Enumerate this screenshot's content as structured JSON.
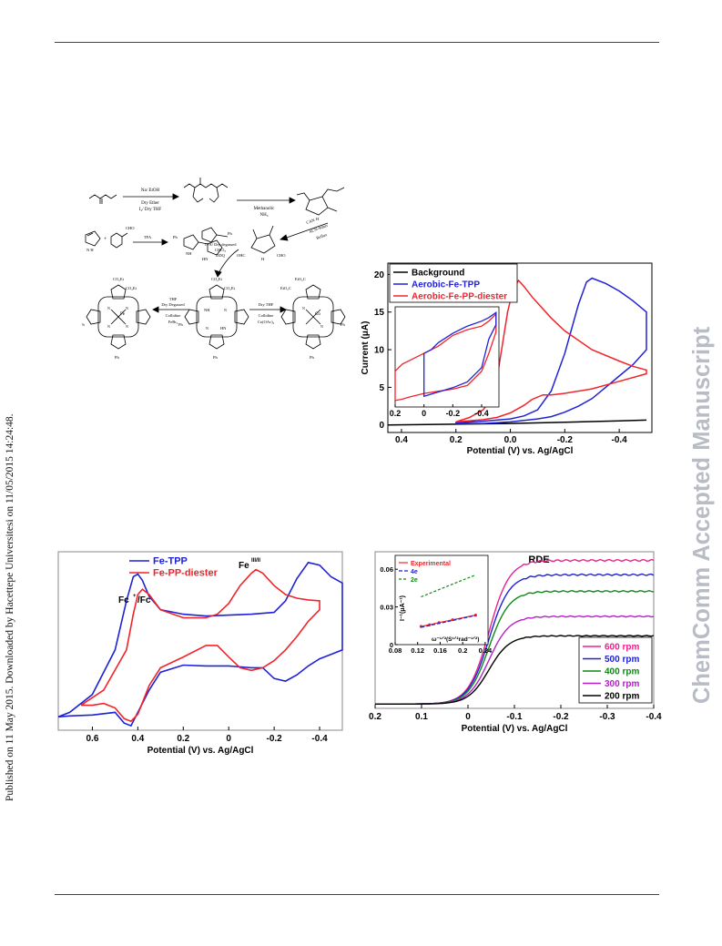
{
  "sidebar_left": "Published on 11 May 2015. Downloaded by Hacettepe Universitesi on 11/05/2015 14:24:48.",
  "watermark": "ChemComm Accepted Manuscript",
  "scheme": {
    "step1_top": "Na/ EtOH",
    "step1_bottom1": "Dry Ether",
    "step1_bottom2": "I₂/ Dry THF",
    "step2_top": "Methanolic",
    "step2_bottom": "NH₃",
    "step3_a": "CAN",
    "step3_b": "ACN-Water",
    "step3_c": "Reflux",
    "aldehyde_label": "CHO",
    "pyrrole_nh": "N H",
    "tfa_label": "TFA",
    "ph": "Ph",
    "nh": "NH",
    "hn": "HN",
    "ohc": "OHC",
    "cho": "CHO",
    "h": "H",
    "cond_center1": "TFA/ Dry degassed",
    "cond_center2": "CHCl₃",
    "cond_center3": "DDQ",
    "cond_left1": "Dry Degassed",
    "cond_left2": "THF",
    "cond_left3": "Collidine",
    "cond_left4": "FeBr₂",
    "cond_right1": "Dry THF",
    "cond_right2": "Collidine",
    "cond_right3": "Co(OAc)₂",
    "co2et": "CO₂Et",
    "eto2c": "EtO₂C",
    "fe": "Fe",
    "co": "Co",
    "n": "N"
  },
  "charts": [
    {
      "id": "cv-aerobic",
      "type": "line",
      "xlabel": "Potential (V) vs. Ag/AgCl",
      "ylabel": "Current (μA)",
      "xlim": [
        0.45,
        -0.52
      ],
      "ylim": [
        -1,
        21.5
      ],
      "xticks": [
        {
          "v": 0.4,
          "t": "0.4"
        },
        {
          "v": 0.2,
          "t": "0.2"
        },
        {
          "v": 0.0,
          "t": "0.0"
        },
        {
          "v": -0.2,
          "t": "-0.2"
        },
        {
          "v": -0.4,
          "t": "-0.4"
        }
      ],
      "yticks": [
        {
          "v": 0,
          "t": "0"
        },
        {
          "v": 5,
          "t": "5"
        },
        {
          "v": 10,
          "t": "10"
        },
        {
          "v": 15,
          "t": "15"
        },
        {
          "v": 20,
          "t": "20"
        }
      ],
      "legend_position": "top-left",
      "series": [
        {
          "name": "Background",
          "color": "#000000",
          "x": [
            0.45,
            0.2,
            0.0,
            -0.2,
            -0.4,
            -0.5
          ],
          "y": [
            0.0,
            0.1,
            0.2,
            0.35,
            0.55,
            0.65
          ]
        },
        {
          "name": "Aerobic-Fe-TPP",
          "color": "#1f22d6",
          "x": [
            0.2,
            0.1,
            0.0,
            -0.05,
            -0.1,
            -0.15,
            -0.2,
            -0.25,
            -0.28,
            -0.3,
            -0.35,
            -0.4,
            -0.45,
            -0.5,
            -0.5,
            -0.45,
            -0.4,
            -0.35,
            -0.3,
            -0.25,
            -0.2,
            -0.15,
            -0.1,
            -0.05,
            0.0,
            0.05,
            0.1,
            0.2
          ],
          "y": [
            0.3,
            0.5,
            0.8,
            1.2,
            2.0,
            4.5,
            9.5,
            16.0,
            19.0,
            19.5,
            18.8,
            17.8,
            16.5,
            15.0,
            10.0,
            8.0,
            6.5,
            5.0,
            3.5,
            2.5,
            1.7,
            1.1,
            0.8,
            0.6,
            0.4,
            0.3,
            0.2,
            0.2
          ]
        },
        {
          "name": "Aerobic-Fe-PP-diester",
          "color": "#f2242a",
          "x": [
            0.2,
            0.15,
            0.1,
            0.07,
            0.05,
            0.03,
            0.01,
            -0.01,
            -0.03,
            -0.05,
            -0.08,
            -0.1,
            -0.15,
            -0.2,
            -0.3,
            -0.4,
            -0.45,
            -0.5,
            -0.5,
            -0.4,
            -0.3,
            -0.2,
            -0.15,
            -0.12,
            -0.08,
            -0.05,
            0.0,
            0.05,
            0.1,
            0.2
          ],
          "y": [
            0.4,
            1.0,
            2.0,
            3.5,
            6.0,
            10.5,
            15.0,
            18.0,
            19.2,
            18.4,
            17.0,
            16.2,
            14.2,
            12.5,
            10.0,
            8.5,
            7.8,
            7.3,
            6.8,
            5.8,
            4.8,
            4.2,
            4.0,
            4.0,
            3.4,
            2.6,
            1.6,
            1.0,
            0.7,
            0.4
          ]
        }
      ],
      "inset": {
        "xlim": [
          0.2,
          -0.52
        ],
        "ylim": [
          2.5,
          16.5
        ],
        "xticks": [
          {
            "v": 0.2,
            "t": "0.2"
          },
          {
            "v": 0.0,
            "t": "0"
          },
          {
            "v": -0.2,
            "t": "-0.2"
          },
          {
            "v": -0.4,
            "t": "-0.4"
          }
        ],
        "series": [
          {
            "color": "#f2242a",
            "x": [
              0.2,
              0.2,
              0.15,
              0.1,
              0.0,
              -0.1,
              -0.2,
              -0.3,
              -0.4,
              -0.45,
              -0.5,
              -0.5,
              -0.45,
              -0.4,
              -0.3,
              -0.2,
              -0.1,
              0.0,
              0.1,
              0.15,
              0.2
            ],
            "y": [
              3.4,
              7.5,
              8.5,
              9.0,
              10.0,
              11.0,
              12.5,
              13.3,
              13.8,
              14.5,
              15.5,
              13.0,
              10.0,
              7.5,
              5.5,
              5.0,
              4.7,
              4.4,
              3.9,
              3.6,
              3.4
            ]
          },
          {
            "color": "#1f22d6",
            "x": [
              0.0,
              0.0,
              -0.05,
              -0.1,
              -0.2,
              -0.3,
              -0.4,
              -0.45,
              -0.5,
              -0.5,
              -0.45,
              -0.4,
              -0.3,
              -0.2,
              -0.1,
              0.0
            ],
            "y": [
              4.0,
              10.0,
              10.5,
              11.5,
              12.8,
              13.8,
              14.5,
              15.0,
              15.7,
              14.0,
              12.0,
              8.0,
              6.0,
              5.2,
              4.6,
              4.0
            ]
          }
        ]
      }
    },
    {
      "id": "cv-comparison",
      "type": "line",
      "xlabel": "Potential (V) vs. Ag/AgCl",
      "xlim": [
        0.75,
        -0.5
      ],
      "ylim": [
        -1.0,
        1.0
      ],
      "xticks": [
        {
          "v": 0.6,
          "t": "0.6"
        },
        {
          "v": 0.4,
          "t": "0.4"
        },
        {
          "v": 0.2,
          "t": "0.2"
        },
        {
          "v": 0.0,
          "t": "0"
        },
        {
          "v": -0.2,
          "t": "-0.2"
        },
        {
          "v": -0.4,
          "t": "-0.4"
        }
      ],
      "legend_position": "top-left",
      "annotations": [
        {
          "text": "Fc",
          "sup": "+",
          "suffix": "/Fc"
        },
        {
          "text": "Fe",
          "sup": "III/II"
        }
      ],
      "series": [
        {
          "name": "Fe-TPP",
          "color": "#1f22d6",
          "x": [
            0.75,
            0.7,
            0.6,
            0.5,
            0.45,
            0.42,
            0.4,
            0.38,
            0.35,
            0.3,
            0.2,
            0.1,
            0.0,
            -0.1,
            -0.2,
            -0.25,
            -0.3,
            -0.35,
            -0.4,
            -0.45,
            -0.5,
            -0.5,
            -0.45,
            -0.4,
            -0.35,
            -0.3,
            -0.25,
            -0.2,
            -0.15,
            -0.1,
            0.0,
            0.1,
            0.2,
            0.3,
            0.35,
            0.4,
            0.43,
            0.46,
            0.5,
            0.6,
            0.7,
            0.75
          ],
          "y": [
            -0.85,
            -0.8,
            -0.6,
            -0.1,
            0.45,
            0.72,
            0.75,
            0.68,
            0.5,
            0.35,
            0.3,
            0.28,
            0.29,
            0.3,
            0.32,
            0.45,
            0.7,
            0.88,
            0.85,
            0.72,
            0.65,
            -0.1,
            -0.15,
            -0.2,
            -0.28,
            -0.38,
            -0.45,
            -0.42,
            -0.3,
            -0.3,
            -0.28,
            -0.28,
            -0.27,
            -0.35,
            -0.55,
            -0.8,
            -0.95,
            -0.92,
            -0.8,
            -0.83,
            -0.84,
            -0.85
          ]
        },
        {
          "name": "Fe-PP-diester",
          "color": "#f2242a",
          "x": [
            0.65,
            0.55,
            0.45,
            0.42,
            0.4,
            0.38,
            0.35,
            0.3,
            0.2,
            0.1,
            0.05,
            0.0,
            -0.05,
            -0.1,
            -0.12,
            -0.15,
            -0.2,
            -0.25,
            -0.3,
            -0.35,
            -0.4,
            -0.4,
            -0.35,
            -0.3,
            -0.25,
            -0.2,
            -0.15,
            -0.1,
            -0.05,
            0.0,
            0.05,
            0.1,
            0.2,
            0.3,
            0.35,
            0.4,
            0.43,
            0.46,
            0.5,
            0.55,
            0.6,
            0.65
          ],
          "y": [
            -0.72,
            -0.55,
            -0.1,
            0.3,
            0.52,
            0.58,
            0.52,
            0.35,
            0.26,
            0.26,
            0.3,
            0.42,
            0.62,
            0.76,
            0.8,
            0.76,
            0.62,
            0.52,
            0.48,
            0.46,
            0.45,
            0.35,
            0.22,
            0.05,
            -0.1,
            -0.22,
            -0.3,
            -0.33,
            -0.3,
            -0.18,
            -0.05,
            -0.05,
            -0.18,
            -0.3,
            -0.5,
            -0.82,
            -0.9,
            -0.87,
            -0.75,
            -0.7,
            -0.72,
            -0.72
          ]
        }
      ]
    },
    {
      "id": "rde",
      "type": "line",
      "title": "RDE",
      "xlabel": "Potential (V) vs. Ag/AgCl",
      "xlim": [
        0.2,
        -0.4
      ],
      "ylim": [
        -0.3,
        10.6
      ],
      "xticks": [
        {
          "v": 0.2,
          "t": "0.2"
        },
        {
          "v": 0.1,
          "t": "0.1"
        },
        {
          "v": 0.0,
          "t": "0"
        },
        {
          "v": -0.1,
          "t": "-0.1"
        },
        {
          "v": -0.2,
          "t": "-0.2"
        },
        {
          "v": -0.3,
          "t": "-0.3"
        },
        {
          "v": -0.4,
          "t": "-0.4"
        }
      ],
      "legend_position": "bottom-right",
      "series": [
        {
          "name": "600 rpm",
          "color": "#e8238c",
          "plateau": 10.0,
          "e_half": -0.045
        },
        {
          "name": "500 rpm",
          "color": "#1f22d6",
          "plateau": 9.0,
          "e_half": -0.045
        },
        {
          "name": "400 rpm",
          "color": "#0f8a16",
          "plateau": 7.85,
          "e_half": -0.045
        },
        {
          "name": "300 rpm",
          "color": "#b520c9",
          "plateau": 6.1,
          "e_half": -0.045
        },
        {
          "name": "200 rpm",
          "color": "#000000",
          "plateau": 4.75,
          "e_half": -0.045
        }
      ],
      "inset": {
        "xlabel": "ω⁻¹ᐟ²(S¹ᐟ²rad⁻¹ᐟ²)",
        "ylabel": "I⁻¹(μA⁻¹)",
        "xlim": [
          0.08,
          0.245
        ],
        "ylim": [
          0.0,
          0.071
        ],
        "xticks": [
          {
            "v": 0.08,
            "t": "0.08"
          },
          {
            "v": 0.12,
            "t": "0.12"
          },
          {
            "v": 0.16,
            "t": "0.16"
          },
          {
            "v": 0.2,
            "t": "0.2"
          },
          {
            "v": 0.24,
            "t": "0.24"
          }
        ],
        "yticks": [
          {
            "v": 0.0,
            "t": "0"
          },
          {
            "v": 0.03,
            "t": "0.03"
          },
          {
            "v": 0.06,
            "t": "0.06"
          }
        ],
        "series": [
          {
            "name": "Experimental",
            "color": "#f2242a",
            "x": [
              0.126,
              0.141,
              0.158,
              0.182,
              0.223
            ],
            "y": [
              0.0145,
              0.0158,
              0.0175,
              0.0198,
              0.0235
            ]
          },
          {
            "name": "4e",
            "color": "#1f22d6",
            "x": [
              0.126,
              0.223
            ],
            "y": [
              0.0138,
              0.0232
            ]
          },
          {
            "name": "2e",
            "color": "#0f8a16",
            "x": [
              0.126,
              0.223
            ],
            "y": [
              0.038,
              0.0555
            ]
          }
        ]
      }
    }
  ]
}
